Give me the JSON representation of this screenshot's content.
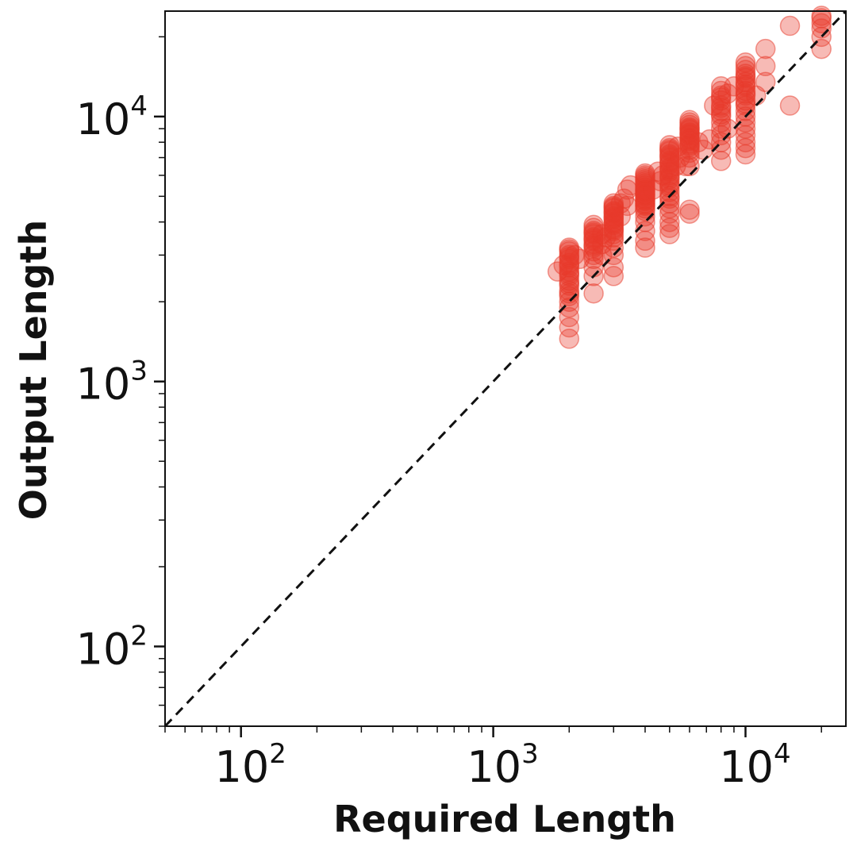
{
  "chart_data": {
    "type": "scatter",
    "title": "",
    "xlabel": "Required Length",
    "ylabel": "Output Length",
    "xscale": "log",
    "yscale": "log",
    "xlim": [
      50,
      25000
    ],
    "ylim": [
      50,
      25000
    ],
    "grid": false,
    "legend": "none",
    "x_ticks": [
      {
        "value": 100,
        "base": "10",
        "exp": "2"
      },
      {
        "value": 1000,
        "base": "10",
        "exp": "3"
      },
      {
        "value": 10000,
        "base": "10",
        "exp": "4"
      }
    ],
    "y_ticks": [
      {
        "value": 100,
        "base": "10",
        "exp": "2"
      },
      {
        "value": 1000,
        "base": "10",
        "exp": "3"
      },
      {
        "value": 10000,
        "base": "10",
        "exp": "4"
      }
    ],
    "reference_line": {
      "style": "dashed",
      "color": "#111111",
      "x": [
        50,
        25000
      ],
      "y": [
        50,
        25000
      ]
    },
    "point_color": "#e8392a",
    "point_opacity": 0.35,
    "points": [
      [
        2000,
        1450
      ],
      [
        2000,
        1600
      ],
      [
        2000,
        1750
      ],
      [
        2000,
        1900
      ],
      [
        2000,
        2000
      ],
      [
        2000,
        2100
      ],
      [
        2000,
        2200
      ],
      [
        2000,
        2300
      ],
      [
        2000,
        2400
      ],
      [
        2000,
        2500
      ],
      [
        2000,
        2600
      ],
      [
        2000,
        2700
      ],
      [
        2000,
        2800
      ],
      [
        2000,
        2900
      ],
      [
        2000,
        3000
      ],
      [
        2000,
        3100
      ],
      [
        2000,
        3200
      ],
      [
        2000,
        2150
      ],
      [
        2000,
        2350
      ],
      [
        2000,
        2550
      ],
      [
        2000,
        2750
      ],
      [
        2000,
        2950
      ],
      [
        2000,
        3150
      ],
      [
        1800,
        2600
      ],
      [
        1900,
        2750
      ],
      [
        2100,
        3000
      ],
      [
        2200,
        2900
      ],
      [
        2500,
        2150
      ],
      [
        2500,
        2500
      ],
      [
        2500,
        2700
      ],
      [
        2500,
        2900
      ],
      [
        2500,
        3000
      ],
      [
        2500,
        3100
      ],
      [
        2500,
        3200
      ],
      [
        2500,
        3300
      ],
      [
        2500,
        3400
      ],
      [
        2500,
        3500
      ],
      [
        2500,
        3600
      ],
      [
        2500,
        3700
      ],
      [
        2500,
        3800
      ],
      [
        2500,
        3900
      ],
      [
        2500,
        3250
      ],
      [
        2500,
        3450
      ],
      [
        2500,
        3650
      ],
      [
        2700,
        3300
      ],
      [
        2700,
        3600
      ],
      [
        2800,
        3500
      ],
      [
        2700,
        3000
      ],
      [
        3000,
        2500
      ],
      [
        3000,
        2700
      ],
      [
        3000,
        3000
      ],
      [
        3000,
        3200
      ],
      [
        3000,
        3400
      ],
      [
        3000,
        3500
      ],
      [
        3000,
        3600
      ],
      [
        3000,
        3700
      ],
      [
        3000,
        3800
      ],
      [
        3000,
        3900
      ],
      [
        3000,
        4000
      ],
      [
        3000,
        4100
      ],
      [
        3000,
        4200
      ],
      [
        3000,
        4300
      ],
      [
        3000,
        4400
      ],
      [
        3000,
        4500
      ],
      [
        3000,
        4600
      ],
      [
        3000,
        4700
      ],
      [
        3000,
        3750
      ],
      [
        3000,
        3950
      ],
      [
        3000,
        4150
      ],
      [
        3000,
        4350
      ],
      [
        3000,
        4550
      ],
      [
        3200,
        4700
      ],
      [
        3300,
        4900
      ],
      [
        3400,
        5300
      ],
      [
        3500,
        5500
      ],
      [
        3200,
        4200
      ],
      [
        3400,
        4600
      ],
      [
        4000,
        3200
      ],
      [
        4000,
        3400
      ],
      [
        4000,
        3700
      ],
      [
        4000,
        4000
      ],
      [
        4000,
        4200
      ],
      [
        4000,
        4400
      ],
      [
        4000,
        4500
      ],
      [
        4000,
        4600
      ],
      [
        4000,
        4700
      ],
      [
        4000,
        4800
      ],
      [
        4000,
        4900
      ],
      [
        4000,
        5000
      ],
      [
        4000,
        5100
      ],
      [
        4000,
        5200
      ],
      [
        4000,
        5300
      ],
      [
        4000,
        5400
      ],
      [
        4000,
        5500
      ],
      [
        4000,
        5600
      ],
      [
        4000,
        5700
      ],
      [
        4000,
        5800
      ],
      [
        4000,
        5900
      ],
      [
        4000,
        6000
      ],
      [
        4000,
        6100
      ],
      [
        4000,
        4650
      ],
      [
        4000,
        4850
      ],
      [
        4000,
        5050
      ],
      [
        4000,
        5250
      ],
      [
        4300,
        5300
      ],
      [
        4600,
        5700
      ],
      [
        4500,
        6200
      ],
      [
        4700,
        6000
      ],
      [
        5000,
        3600
      ],
      [
        5000,
        3800
      ],
      [
        5000,
        4000
      ],
      [
        5000,
        4300
      ],
      [
        5000,
        4500
      ],
      [
        5000,
        4700
      ],
      [
        5000,
        4900
      ],
      [
        5000,
        5000
      ],
      [
        5000,
        5200
      ],
      [
        5000,
        5400
      ],
      [
        5000,
        5600
      ],
      [
        5000,
        5800
      ],
      [
        5000,
        6000
      ],
      [
        5000,
        6200
      ],
      [
        5000,
        6400
      ],
      [
        5000,
        6600
      ],
      [
        5000,
        6800
      ],
      [
        5000,
        7000
      ],
      [
        5000,
        7200
      ],
      [
        5000,
        7400
      ],
      [
        5000,
        7600
      ],
      [
        5000,
        7800
      ],
      [
        5000,
        5500
      ],
      [
        5000,
        5900
      ],
      [
        5000,
        6300
      ],
      [
        5000,
        6700
      ],
      [
        5000,
        7100
      ],
      [
        5000,
        7500
      ],
      [
        5300,
        6500
      ],
      [
        5500,
        7000
      ],
      [
        5800,
        6500
      ],
      [
        5400,
        7700
      ],
      [
        6000,
        4300
      ],
      [
        6000,
        4450
      ],
      [
        6000,
        6500
      ],
      [
        6000,
        7000
      ],
      [
        6000,
        7300
      ],
      [
        6000,
        7500
      ],
      [
        6000,
        7700
      ],
      [
        6000,
        7900
      ],
      [
        6000,
        8100
      ],
      [
        6000,
        8300
      ],
      [
        6000,
        8500
      ],
      [
        6000,
        8700
      ],
      [
        6000,
        8900
      ],
      [
        6000,
        9100
      ],
      [
        6000,
        9300
      ],
      [
        6000,
        9500
      ],
      [
        6000,
        9700
      ],
      [
        6000,
        7800
      ],
      [
        6000,
        8200
      ],
      [
        6000,
        8600
      ],
      [
        6000,
        9000
      ],
      [
        6500,
        8000
      ],
      [
        6800,
        7500
      ],
      [
        7200,
        8200
      ],
      [
        8000,
        6800
      ],
      [
        8000,
        7500
      ],
      [
        8000,
        8000
      ],
      [
        8000,
        8500
      ],
      [
        8000,
        9000
      ],
      [
        8000,
        9500
      ],
      [
        8000,
        10000
      ],
      [
        8000,
        10500
      ],
      [
        8000,
        11000
      ],
      [
        8000,
        11500
      ],
      [
        8000,
        12000
      ],
      [
        8000,
        12500
      ],
      [
        8000,
        13000
      ],
      [
        8000,
        10200
      ],
      [
        8000,
        10800
      ],
      [
        8000,
        11800
      ],
      [
        7500,
        11000
      ],
      [
        8500,
        12200
      ],
      [
        9000,
        13000
      ],
      [
        8500,
        9000
      ],
      [
        10000,
        7200
      ],
      [
        10000,
        7600
      ],
      [
        10000,
        8000
      ],
      [
        10000,
        8500
      ],
      [
        10000,
        9000
      ],
      [
        10000,
        9500
      ],
      [
        10000,
        10000
      ],
      [
        10000,
        10500
      ],
      [
        10000,
        11000
      ],
      [
        10000,
        11500
      ],
      [
        10000,
        12000
      ],
      [
        10000,
        12500
      ],
      [
        10000,
        13000
      ],
      [
        10000,
        13500
      ],
      [
        10000,
        14000
      ],
      [
        10000,
        14500
      ],
      [
        10000,
        15000
      ],
      [
        10000,
        15500
      ],
      [
        10000,
        16000
      ],
      [
        10000,
        11200
      ],
      [
        10000,
        12200
      ],
      [
        10000,
        13200
      ],
      [
        10000,
        14200
      ],
      [
        11000,
        12000
      ],
      [
        12000,
        13500
      ],
      [
        12000,
        15500
      ],
      [
        12000,
        18000
      ],
      [
        15000,
        11000
      ],
      [
        15000,
        22000
      ],
      [
        20000,
        18000
      ],
      [
        20000,
        20000
      ],
      [
        20000,
        21500
      ],
      [
        20000,
        22500
      ],
      [
        20000,
        23500
      ],
      [
        20000,
        24000
      ]
    ]
  }
}
